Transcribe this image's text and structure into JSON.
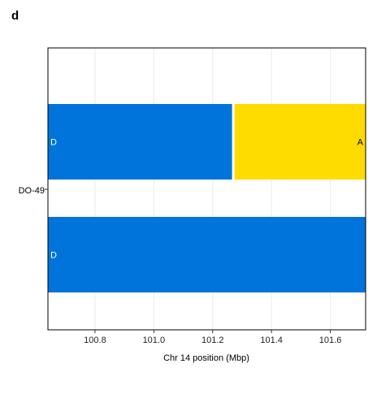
{
  "panel_label": "d",
  "chart_data": {
    "type": "bar",
    "orientation": "horizontal",
    "stacked": true,
    "title": "",
    "xlabel": "Chr 14 position (Mbp)",
    "ylabel": "",
    "xlim": [
      100.64,
      101.72
    ],
    "xticks": [
      100.8,
      101.0,
      101.2,
      101.4,
      101.6
    ],
    "xtick_labels": [
      "100.8",
      "101.0",
      "101.2",
      "101.4",
      "101.6"
    ],
    "grid": true,
    "sample_label": "DO-49",
    "haplotype_colors": {
      "D": "#0074DB",
      "A": "#FFDC00"
    },
    "rows": [
      {
        "segments": [
          {
            "haplotype": "D",
            "start": 100.64,
            "end": 101.27,
            "label": "D",
            "color": "#0074DB",
            "text_color": "#ffffff"
          },
          {
            "haplotype": "A",
            "start": 101.27,
            "end": 101.72,
            "label": "A",
            "color": "#FFDC00",
            "text_color": "#000000"
          }
        ]
      },
      {
        "segments": [
          {
            "haplotype": "D",
            "start": 100.64,
            "end": 101.72,
            "label": "D",
            "color": "#0074DB",
            "text_color": "#ffffff"
          }
        ]
      }
    ]
  }
}
